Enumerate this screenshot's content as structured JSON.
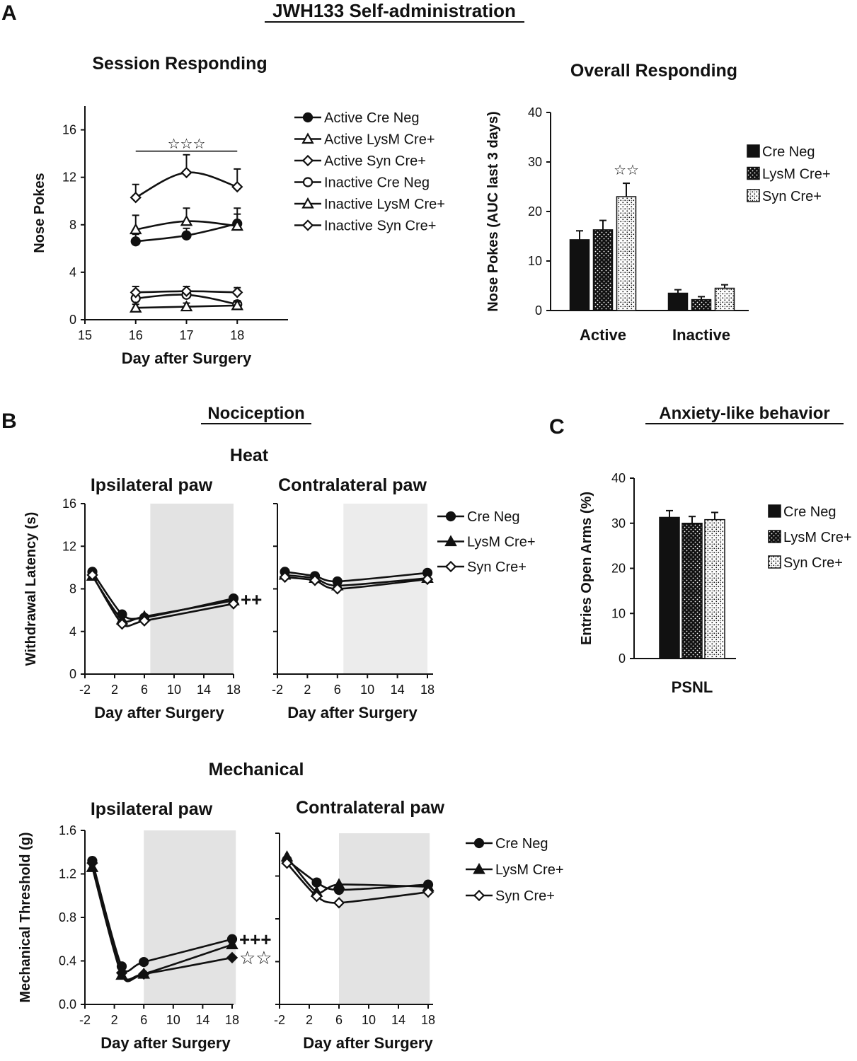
{
  "figure": {
    "panel_letters": {
      "a": "A",
      "b": "B",
      "c": "C"
    },
    "titles": {
      "main": "JWH133 Self-administration",
      "nociception": "Nociception",
      "anxiety": "Anxiety-like behavior",
      "heat": "Heat",
      "mechanical": "Mechanical"
    }
  },
  "chart_data": [
    {
      "id": "session",
      "type": "line",
      "title": "Session Responding",
      "xlabel": "Day after Surgery",
      "ylabel": "Nose Pokes",
      "xlim": [
        15,
        19
      ],
      "ylim": [
        0,
        18
      ],
      "xticks": [
        15,
        16,
        17,
        18
      ],
      "yticks": [
        0,
        4,
        8,
        12,
        16
      ],
      "legend_position": "right",
      "annotations": [
        {
          "text": "☆☆☆",
          "bar_from": 16,
          "bar_to": 18,
          "y": 14.2
        }
      ],
      "series": [
        {
          "name": "Active Cre Neg",
          "marker": "circle",
          "fill": "filled",
          "x": [
            16,
            17,
            18
          ],
          "y": [
            6.6,
            7.1,
            8.1
          ],
          "err": [
            0.6,
            0.6,
            0.8
          ]
        },
        {
          "name": "Active LysM Cre+",
          "marker": "triangle",
          "fill": "open",
          "x": [
            16,
            17,
            18
          ],
          "y": [
            7.6,
            8.3,
            7.9
          ],
          "err": [
            1.2,
            1.1,
            1.5
          ]
        },
        {
          "name": "Active Syn Cre+",
          "marker": "diamond",
          "fill": "open",
          "x": [
            16,
            17,
            18
          ],
          "y": [
            10.3,
            12.4,
            11.2
          ],
          "err": [
            1.1,
            1.5,
            1.5
          ]
        },
        {
          "name": "Inactive Cre Neg",
          "marker": "circle",
          "fill": "open",
          "x": [
            16,
            17,
            18
          ],
          "y": [
            1.8,
            2.1,
            1.3
          ],
          "err": [
            0.4,
            0.4,
            0.3
          ]
        },
        {
          "name": "Inactive LysM Cre+",
          "marker": "triangle",
          "fill": "open",
          "x": [
            16,
            17,
            18
          ],
          "y": [
            1.0,
            1.1,
            1.2
          ],
          "err": [
            0.3,
            0.3,
            0.3
          ]
        },
        {
          "name": "Inactive Syn Cre+",
          "marker": "diamond",
          "fill": "open",
          "x": [
            16,
            17,
            18
          ],
          "y": [
            2.3,
            2.4,
            2.3
          ],
          "err": [
            0.5,
            0.4,
            0.4
          ]
        }
      ]
    },
    {
      "id": "overall",
      "type": "bar",
      "title": "Overall Responding",
      "ylabel": "Nose Pokes (AUC last 3 days)",
      "ylim": [
        0,
        40
      ],
      "yticks": [
        0,
        10,
        20,
        30,
        40
      ],
      "categories": [
        "Active",
        "Inactive"
      ],
      "legend_position": "right",
      "annotations": [
        {
          "text": "☆☆",
          "category": "Active",
          "series": "Syn Cre+"
        }
      ],
      "series": [
        {
          "name": "Cre Neg",
          "pattern": "solid",
          "values": [
            14.3,
            3.5
          ],
          "err": [
            1.8,
            0.7
          ]
        },
        {
          "name": "LysM Cre+",
          "pattern": "dots",
          "values": [
            16.3,
            2.2
          ],
          "err": [
            1.9,
            0.6
          ]
        },
        {
          "name": "Syn Cre+",
          "pattern": "speckle",
          "values": [
            23.0,
            4.5
          ],
          "err": [
            2.7,
            0.7
          ]
        }
      ]
    },
    {
      "id": "heat-ipsi",
      "type": "line",
      "title": "Ipsilateral paw",
      "xlabel": "Day after Surgery",
      "ylabel": "Withdrawal Latency (s)",
      "xlim": [
        -2,
        18
      ],
      "ylim": [
        0,
        16
      ],
      "xticks": [
        -2,
        2,
        6,
        10,
        14,
        18
      ],
      "yticks": [
        0,
        4,
        8,
        12,
        16
      ],
      "shaded_region": [
        6.8,
        18
      ],
      "annotations": [
        {
          "text": "++",
          "x": 18,
          "y": 7.0
        }
      ],
      "series": [
        {
          "name": "Cre Neg",
          "marker": "circle",
          "fill": "filled",
          "x": [
            -1,
            3,
            6,
            18
          ],
          "y": [
            9.6,
            5.6,
            5.3,
            7.1
          ]
        },
        {
          "name": "LysM Cre+",
          "marker": "triangle",
          "fill": "filled",
          "x": [
            -1,
            3,
            6,
            18
          ],
          "y": [
            9.2,
            5.1,
            5.4,
            6.9
          ]
        },
        {
          "name": "Syn Cre+",
          "marker": "diamond",
          "fill": "open",
          "x": [
            -1,
            3,
            6,
            18
          ],
          "y": [
            9.3,
            4.7,
            5.0,
            6.6
          ]
        }
      ]
    },
    {
      "id": "heat-contra",
      "type": "line",
      "title": "Contralateral paw",
      "xlabel": "Day after Surgery",
      "ylabel": "",
      "xlim": [
        -2,
        18
      ],
      "ylim": [
        0,
        16
      ],
      "xticks": [
        -2,
        2,
        6,
        10,
        14,
        18
      ],
      "shaded_region": [
        6.8,
        18
      ],
      "legend_position": "right",
      "series": [
        {
          "name": "Cre Neg",
          "marker": "circle",
          "fill": "filled",
          "x": [
            -1,
            3,
            6,
            18
          ],
          "y": [
            9.6,
            9.2,
            8.7,
            9.5
          ]
        },
        {
          "name": "LysM Cre+",
          "marker": "triangle",
          "fill": "filled",
          "x": [
            -1,
            3,
            6,
            18
          ],
          "y": [
            9.3,
            9.0,
            8.3,
            9.0
          ]
        },
        {
          "name": "Syn Cre+",
          "marker": "diamond",
          "fill": "open",
          "x": [
            -1,
            3,
            6,
            18
          ],
          "y": [
            9.1,
            8.8,
            8.0,
            8.9
          ]
        }
      ]
    },
    {
      "id": "mech-ipsi",
      "type": "line",
      "title": "Ipsilateral paw",
      "xlabel": "Day after Surgery",
      "ylabel": "Mechanical Threshold (g)",
      "xlim": [
        -2,
        18
      ],
      "ylim": [
        0,
        1.6
      ],
      "xticks": [
        -2,
        2,
        6,
        10,
        14,
        18
      ],
      "yticks": [
        0.0,
        0.4,
        0.8,
        1.2,
        1.6
      ],
      "shaded_region": [
        6.0,
        18.5
      ],
      "annotations": [
        {
          "text": "+++",
          "x": 18,
          "y": 0.6
        },
        {
          "text": "☆☆",
          "x": 18,
          "y": 0.43
        }
      ],
      "series": [
        {
          "name": "Cre Neg",
          "marker": "circle",
          "fill": "filled",
          "x": [
            -1,
            3,
            6,
            18
          ],
          "y": [
            1.32,
            0.35,
            0.39,
            0.6
          ]
        },
        {
          "name": "LysM Cre+",
          "marker": "triangle",
          "fill": "filled",
          "x": [
            -1,
            3,
            6,
            18
          ],
          "y": [
            1.26,
            0.27,
            0.28,
            0.55
          ]
        },
        {
          "name": "Syn Cre+",
          "marker": "diamond",
          "fill": "filled",
          "x": [
            -1,
            3,
            6,
            18
          ],
          "y": [
            1.3,
            0.29,
            0.28,
            0.43
          ]
        }
      ]
    },
    {
      "id": "mech-contra",
      "type": "line",
      "title": "Contralateral paw",
      "xlabel": "Day after Surgery",
      "ylabel": "",
      "xlim": [
        -2,
        18
      ],
      "ylim": [
        0,
        1.6
      ],
      "xticks": [
        -2,
        2,
        6,
        10,
        14,
        18
      ],
      "shaded_region": [
        6.0,
        18.2
      ],
      "legend_position": "right",
      "series": [
        {
          "name": "Cre Neg",
          "marker": "circle",
          "fill": "filled",
          "x": [
            -1,
            3,
            6,
            18
          ],
          "y": [
            1.35,
            1.14,
            1.07,
            1.12
          ]
        },
        {
          "name": "LysM Cre+",
          "marker": "triangle",
          "fill": "filled",
          "x": [
            -1,
            3,
            6,
            18
          ],
          "y": [
            1.38,
            1.05,
            1.12,
            1.1
          ]
        },
        {
          "name": "Syn Cre+",
          "marker": "diamond",
          "fill": "open",
          "x": [
            -1,
            3,
            6,
            18
          ],
          "y": [
            1.32,
            1.01,
            0.95,
            1.05
          ]
        }
      ]
    },
    {
      "id": "anxiety",
      "type": "bar",
      "title": "",
      "ylabel": "Entries Open Arms (%)",
      "ylim": [
        0,
        40
      ],
      "yticks": [
        0,
        10,
        20,
        30,
        40
      ],
      "categories": [
        "PSNL"
      ],
      "legend_position": "right",
      "series": [
        {
          "name": "Cre Neg",
          "pattern": "solid",
          "values": [
            31.3
          ],
          "err": [
            1.5
          ]
        },
        {
          "name": "LysM Cre+",
          "pattern": "dots",
          "values": [
            30.0
          ],
          "err": [
            1.5
          ]
        },
        {
          "name": "Syn Cre+",
          "pattern": "speckle",
          "values": [
            30.8
          ],
          "err": [
            1.6
          ]
        }
      ]
    }
  ]
}
